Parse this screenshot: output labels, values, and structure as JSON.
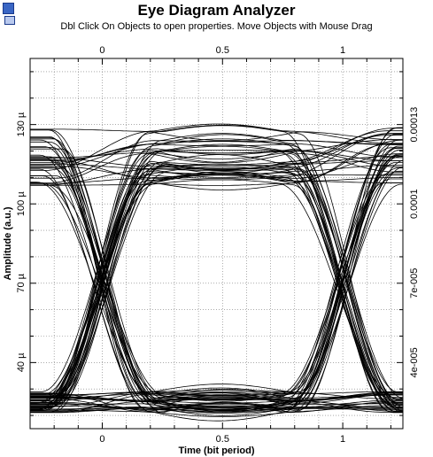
{
  "window": {
    "title": "Eye Diagram Analyzer",
    "subtitle": "Dbl Click On Objects to open properties.  Move Objects with Mouse Drag",
    "icon_names": [
      "analyzer-app-icon",
      "window-icon"
    ]
  },
  "chart_data": {
    "type": "line",
    "title": "Eye Diagram Analyzer",
    "xlabel": "Time (bit period)",
    "ylabel": "Amplitude (a.u.)",
    "xlim": [
      -0.3,
      1.25
    ],
    "ylim": [
      1.5e-05,
      0.000155
    ],
    "grid": true,
    "x_ticks": [
      0,
      0.5,
      1
    ],
    "x_tick_labels": [
      "0",
      "0.5",
      "1"
    ],
    "y_ticks_left": [
      4e-05,
      7e-05,
      0.0001,
      0.00013
    ],
    "y_tick_labels_left": [
      "40 µ",
      "70 µ",
      "100 µ",
      "130 µ"
    ],
    "y_ticks_right": [
      4e-05,
      7e-05,
      0.0001,
      0.00013
    ],
    "y_tick_labels_right": [
      "4e-005",
      "7e-005",
      "0.0001",
      "0.00013"
    ],
    "eye": {
      "crossing_times": [
        0,
        1
      ],
      "crossing_level": 7e-05,
      "high_level": 0.000118,
      "low_level": 2.5e-05,
      "bit_period": 1
    },
    "line_color": "#000000"
  }
}
